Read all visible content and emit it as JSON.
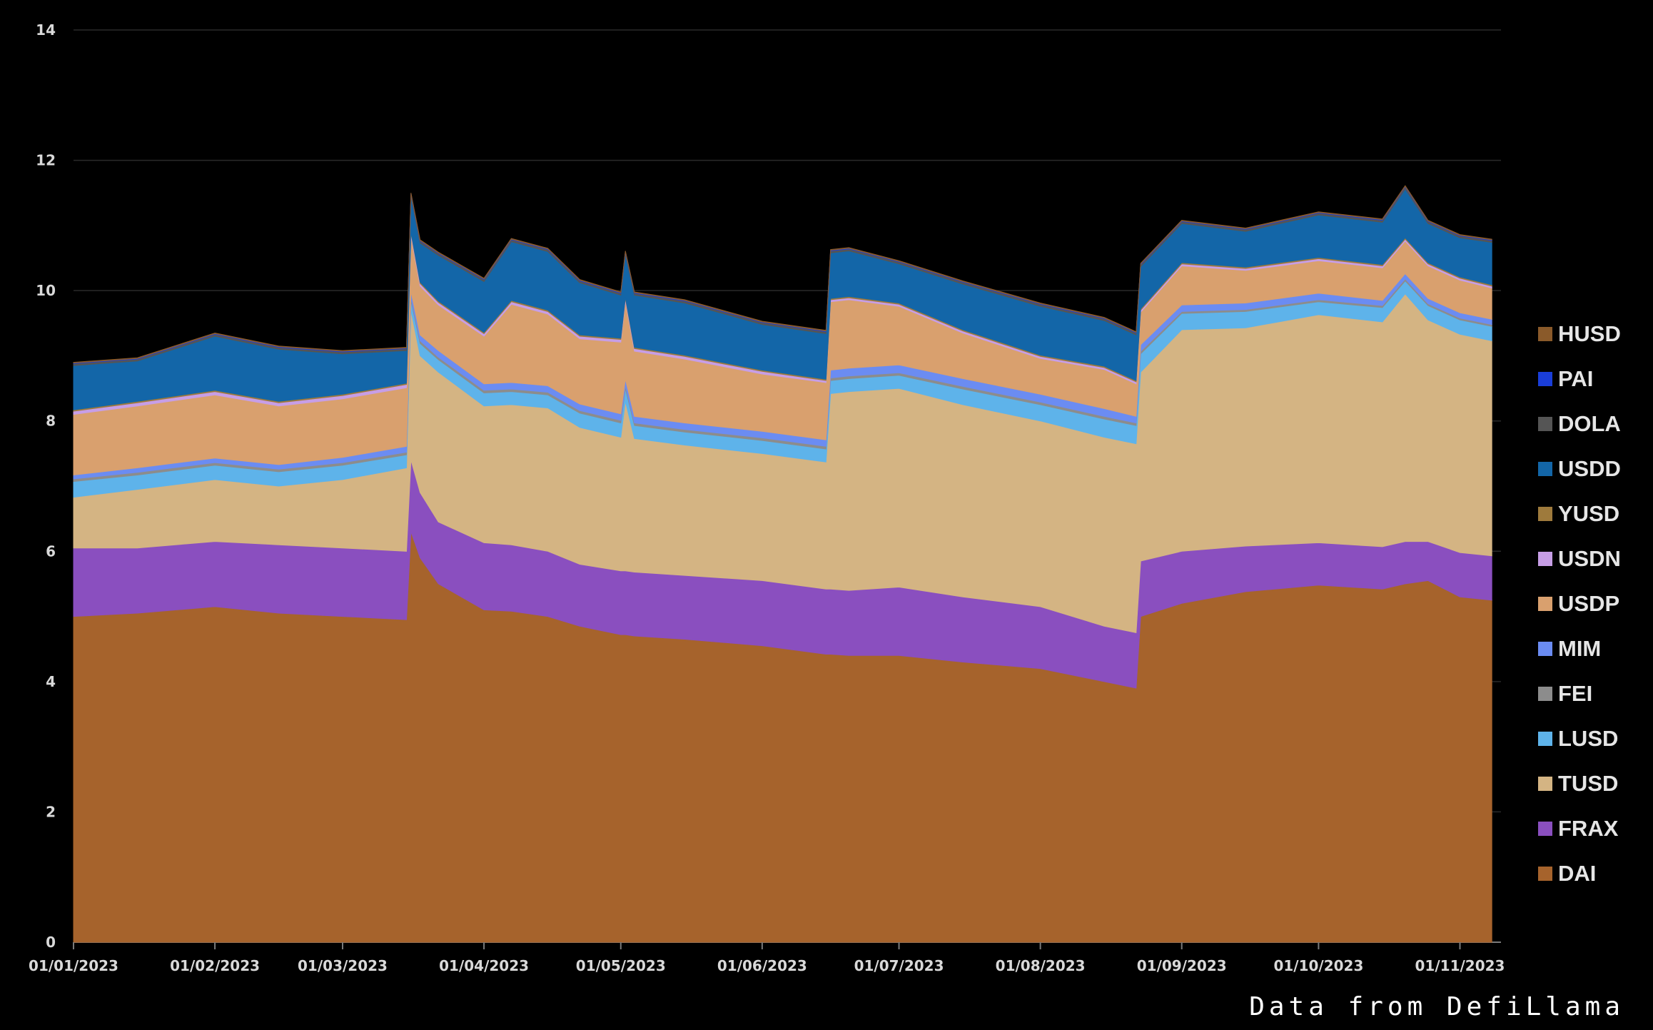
{
  "source_note": "Data from DefiLlama",
  "chart_data": {
    "type": "area",
    "stacked": true,
    "title": "",
    "xlabel": "",
    "ylabel": "",
    "ylim": [
      0,
      14
    ],
    "yticks": [
      0,
      2,
      4,
      6,
      8,
      10,
      12,
      14
    ],
    "grid": "horizontal",
    "legend_position": "right",
    "background": "#000000",
    "x_dates": [
      "2023-01-01",
      "2023-01-15",
      "2023-02-01",
      "2023-02-15",
      "2023-03-01",
      "2023-03-15",
      "2023-03-16",
      "2023-03-18",
      "2023-03-22",
      "2023-04-01",
      "2023-04-07",
      "2023-04-15",
      "2023-04-22",
      "2023-05-01",
      "2023-05-02",
      "2023-05-04",
      "2023-05-15",
      "2023-06-01",
      "2023-06-15",
      "2023-06-16",
      "2023-06-20",
      "2023-07-01",
      "2023-07-15",
      "2023-08-01",
      "2023-08-15",
      "2023-08-22",
      "2023-08-23",
      "2023-09-01",
      "2023-09-15",
      "2023-10-01",
      "2023-10-15",
      "2023-10-20",
      "2023-10-25",
      "2023-11-01",
      "2023-11-08"
    ],
    "x_tick_labels": [
      "01/01/2023",
      "01/02/2023",
      "01/03/2023",
      "01/04/2023",
      "01/05/2023",
      "01/06/2023",
      "01/07/2023",
      "01/08/2023",
      "01/09/2023",
      "01/10/2023",
      "01/11/2023"
    ],
    "x_tick_dates": [
      "2023-01-01",
      "2023-02-01",
      "2023-03-01",
      "2023-04-01",
      "2023-05-01",
      "2023-06-01",
      "2023-07-01",
      "2023-08-01",
      "2023-09-01",
      "2023-10-01",
      "2023-11-01"
    ],
    "series": [
      {
        "name": "DAI",
        "color": "#a6632c",
        "values": [
          5.0,
          5.05,
          5.15,
          5.05,
          5.0,
          4.95,
          6.3,
          5.9,
          5.5,
          5.1,
          5.08,
          5.0,
          4.85,
          4.72,
          4.72,
          4.7,
          4.65,
          4.55,
          4.42,
          4.42,
          4.4,
          4.4,
          4.3,
          4.2,
          4.0,
          3.9,
          5.0,
          5.2,
          5.38,
          5.48,
          5.42,
          5.5,
          5.55,
          5.3,
          5.25
        ]
      },
      {
        "name": "FRAX",
        "color": "#8a4fbf",
        "values": [
          1.05,
          1.0,
          1.0,
          1.05,
          1.05,
          1.05,
          1.1,
          1.0,
          0.95,
          1.03,
          1.02,
          1.0,
          0.95,
          0.98,
          0.98,
          0.98,
          0.98,
          1.0,
          1.0,
          1.0,
          1.0,
          1.05,
          1.0,
          0.95,
          0.85,
          0.85,
          0.85,
          0.8,
          0.7,
          0.65,
          0.65,
          0.65,
          0.6,
          0.68,
          0.68
        ]
      },
      {
        "name": "TUSD",
        "color": "#d4b483",
        "values": [
          0.78,
          0.9,
          0.95,
          0.9,
          1.05,
          1.28,
          2.3,
          2.1,
          2.3,
          2.1,
          2.15,
          2.2,
          2.1,
          2.05,
          2.6,
          2.05,
          2.0,
          1.95,
          1.95,
          3.0,
          3.05,
          3.05,
          2.95,
          2.85,
          2.9,
          2.9,
          2.9,
          3.4,
          3.35,
          3.5,
          3.45,
          3.8,
          3.4,
          3.35,
          3.3
        ]
      },
      {
        "name": "LUSD",
        "color": "#5eb3ea",
        "values": [
          0.24,
          0.22,
          0.22,
          0.22,
          0.22,
          0.2,
          0.15,
          0.19,
          0.19,
          0.2,
          0.2,
          0.2,
          0.22,
          0.22,
          0.2,
          0.2,
          0.2,
          0.2,
          0.2,
          0.2,
          0.2,
          0.2,
          0.24,
          0.25,
          0.28,
          0.28,
          0.28,
          0.25,
          0.25,
          0.2,
          0.22,
          0.2,
          0.22,
          0.22,
          0.22
        ]
      },
      {
        "name": "FEI",
        "color": "#8c8c8c",
        "values": [
          0.04,
          0.04,
          0.04,
          0.04,
          0.04,
          0.04,
          0.04,
          0.04,
          0.04,
          0.04,
          0.04,
          0.04,
          0.04,
          0.04,
          0.04,
          0.04,
          0.04,
          0.04,
          0.04,
          0.04,
          0.04,
          0.04,
          0.04,
          0.04,
          0.04,
          0.04,
          0.04,
          0.03,
          0.03,
          0.03,
          0.03,
          0.03,
          0.03,
          0.03,
          0.03
        ]
      },
      {
        "name": "MIM",
        "color": "#6b8cf2",
        "values": [
          0.06,
          0.07,
          0.07,
          0.07,
          0.08,
          0.09,
          0.1,
          0.09,
          0.1,
          0.1,
          0.1,
          0.1,
          0.1,
          0.1,
          0.1,
          0.1,
          0.1,
          0.1,
          0.1,
          0.12,
          0.12,
          0.12,
          0.12,
          0.12,
          0.12,
          0.1,
          0.1,
          0.1,
          0.1,
          0.1,
          0.08,
          0.08,
          0.08,
          0.08,
          0.08
        ]
      },
      {
        "name": "USDP",
        "color": "#d9a06e",
        "values": [
          0.93,
          0.95,
          0.97,
          0.9,
          0.9,
          0.9,
          0.85,
          0.75,
          0.7,
          0.73,
          1.2,
          1.1,
          1.0,
          1.1,
          1.2,
          1.0,
          0.98,
          0.88,
          0.88,
          1.05,
          1.05,
          0.9,
          0.7,
          0.55,
          0.6,
          0.5,
          0.5,
          0.6,
          0.5,
          0.5,
          0.5,
          0.5,
          0.5,
          0.5,
          0.48
        ]
      },
      {
        "name": "USDN",
        "color": "#c79ee6",
        "values": [
          0.05,
          0.05,
          0.05,
          0.05,
          0.05,
          0.05,
          0.04,
          0.04,
          0.04,
          0.04,
          0.04,
          0.04,
          0.04,
          0.04,
          0.04,
          0.04,
          0.04,
          0.04,
          0.03,
          0.03,
          0.03,
          0.03,
          0.03,
          0.03,
          0.03,
          0.03,
          0.03,
          0.03,
          0.03,
          0.03,
          0.03,
          0.03,
          0.03,
          0.03,
          0.03
        ]
      },
      {
        "name": "YUSD",
        "color": "#9e7a3c",
        "values": [
          0.02,
          0.02,
          0.02,
          0.02,
          0.02,
          0.02,
          0.02,
          0.02,
          0.02,
          0.02,
          0.02,
          0.02,
          0.02,
          0.02,
          0.02,
          0.02,
          0.02,
          0.02,
          0.02,
          0.02,
          0.02,
          0.02,
          0.02,
          0.02,
          0.02,
          0.02,
          0.02,
          0.02,
          0.02,
          0.02,
          0.02,
          0.02,
          0.02,
          0.02,
          0.02
        ]
      },
      {
        "name": "USDD",
        "color": "#1366a8",
        "values": [
          0.68,
          0.62,
          0.83,
          0.8,
          0.62,
          0.5,
          0.55,
          0.6,
          0.7,
          0.78,
          0.9,
          0.9,
          0.8,
          0.66,
          0.66,
          0.8,
          0.8,
          0.7,
          0.7,
          0.7,
          0.7,
          0.6,
          0.7,
          0.75,
          0.7,
          0.7,
          0.65,
          0.6,
          0.55,
          0.65,
          0.65,
          0.75,
          0.6,
          0.6,
          0.65
        ]
      },
      {
        "name": "DOLA",
        "color": "#555555",
        "values": [
          0.03,
          0.03,
          0.03,
          0.03,
          0.03,
          0.03,
          0.03,
          0.03,
          0.03,
          0.03,
          0.03,
          0.03,
          0.03,
          0.03,
          0.03,
          0.03,
          0.03,
          0.03,
          0.03,
          0.03,
          0.03,
          0.03,
          0.03,
          0.03,
          0.03,
          0.03,
          0.03,
          0.03,
          0.03,
          0.03,
          0.03,
          0.03,
          0.03,
          0.03,
          0.03
        ]
      },
      {
        "name": "PAI",
        "color": "#1a3ed9",
        "values": [
          0.01,
          0.01,
          0.01,
          0.01,
          0.01,
          0.01,
          0.01,
          0.01,
          0.01,
          0.01,
          0.01,
          0.01,
          0.01,
          0.01,
          0.01,
          0.01,
          0.01,
          0.01,
          0.01,
          0.01,
          0.01,
          0.01,
          0.01,
          0.01,
          0.01,
          0.01,
          0.01,
          0.01,
          0.01,
          0.01,
          0.01,
          0.01,
          0.01,
          0.01,
          0.01
        ]
      },
      {
        "name": "HUSD",
        "color": "#8a5a2a",
        "values": [
          0.01,
          0.01,
          0.01,
          0.01,
          0.01,
          0.01,
          0.01,
          0.01,
          0.01,
          0.01,
          0.01,
          0.01,
          0.01,
          0.01,
          0.01,
          0.01,
          0.01,
          0.01,
          0.01,
          0.01,
          0.01,
          0.01,
          0.01,
          0.01,
          0.01,
          0.01,
          0.01,
          0.01,
          0.01,
          0.01,
          0.01,
          0.01,
          0.01,
          0.01,
          0.01
        ]
      }
    ],
    "legend_order": [
      "HUSD",
      "PAI",
      "DOLA",
      "USDD",
      "YUSD",
      "USDN",
      "USDP",
      "MIM",
      "FEI",
      "LUSD",
      "TUSD",
      "FRAX",
      "DAI"
    ]
  }
}
